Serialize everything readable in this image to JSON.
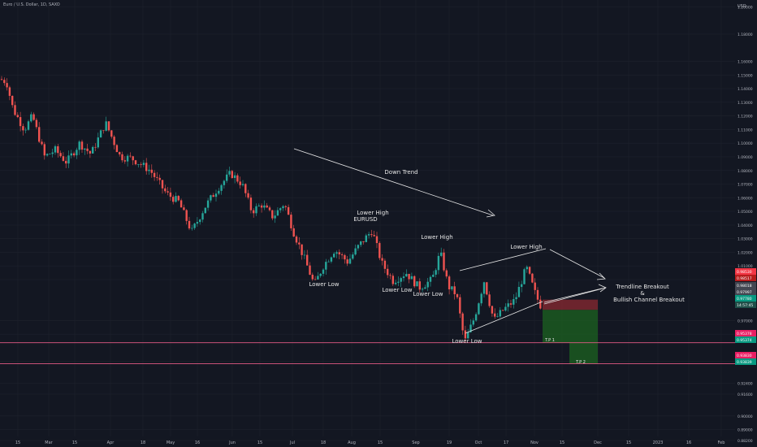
{
  "header": {
    "symbol_title": "Euro / U.S. Dollar, 1D, SAXO",
    "currency": "USD"
  },
  "colors": {
    "background": "#131722",
    "up_candle": "#26a69a",
    "down_candle": "#ef5350",
    "grid": "#1e222d",
    "axis_text": "#b2b5be",
    "annotation": "#e6e6e6",
    "stop_zone": "#8b2a31",
    "target_zone": "#1b5e20",
    "horizontal_line": "#e25a84"
  },
  "chart_data": {
    "type": "candlestick",
    "yaxis": {
      "ylim": [
        0.885,
        1.205
      ],
      "ticks": [
        "1.20000",
        "1.18000",
        "1.16000",
        "1.15000",
        "1.14000",
        "1.13000",
        "1.12000",
        "1.11000",
        "1.10000",
        "1.09000",
        "1.08000",
        "1.07000",
        "1.06000",
        "1.05000",
        "1.04000",
        "1.03000",
        "1.02000",
        "1.01000",
        "1.00000",
        "0.97000",
        "0.96000",
        "0.94000",
        "0.92400",
        "0.91600",
        "0.90000",
        "0.89000",
        "0.88200"
      ],
      "price_labels": [
        {
          "text": "0.98530",
          "color": "#f23645"
        },
        {
          "text": "0.98517",
          "color": "#b71c1c"
        },
        {
          "text": "0.98018",
          "color": "#434651"
        },
        {
          "text": "0.97997",
          "color": "#434651"
        },
        {
          "text": "0.97780",
          "color": "#089981"
        },
        {
          "text": "14:57:45",
          "color": "#1f4e48"
        },
        {
          "text": "0.95378",
          "color": "#e91e63"
        },
        {
          "text": "0.95374",
          "color": "#089981"
        },
        {
          "text": "0.93830",
          "color": "#e91e63"
        },
        {
          "text": "0.93839",
          "color": "#089981"
        }
      ]
    },
    "xaxis": {
      "ticks": [
        "15",
        "Mar",
        "15",
        "Apr",
        "18",
        "May",
        "16",
        "Jun",
        "15",
        "Jul",
        "18",
        "Aug",
        "15",
        "Sep",
        "19",
        "Oct",
        "17",
        "Nov",
        "15",
        "Dec",
        "15",
        "2023",
        "16",
        "Feb"
      ]
    },
    "key_prices": {
      "start_close": 1.147,
      "mar_low": 1.08,
      "mar_high": 1.185,
      "may_low": 1.035,
      "jun_high": 1.078,
      "jul_low": 0.996,
      "aug_high": 1.036,
      "sep_low": 0.986,
      "sep_high": 1.02,
      "oct_low": 0.954,
      "nov_high": 1.009,
      "last": 0.9778
    },
    "annotations": {
      "down_trend": "Down Trend",
      "symbol_label": "EURUSD",
      "lower_high_1": "Lower High",
      "lower_high_2": "Lower High",
      "lower_high_3": "Lower High",
      "lower_low_1": "Lower Low",
      "lower_low_2": "Lower Low",
      "lower_low_3": "Lower Low",
      "lower_low_4": "Lower Low",
      "breakout_line1": "Trendline Breakout",
      "breakout_line2": "&",
      "breakout_line3": "Bullish Channel Breakout",
      "tp1": "T.P 1",
      "tp2": "T.P 2"
    },
    "position": {
      "entry": 0.9778,
      "stop": 0.9853,
      "tp1": 0.9537,
      "tp2": 0.9383
    },
    "horizontal_levels": [
      0.9537,
      0.9383
    ]
  }
}
